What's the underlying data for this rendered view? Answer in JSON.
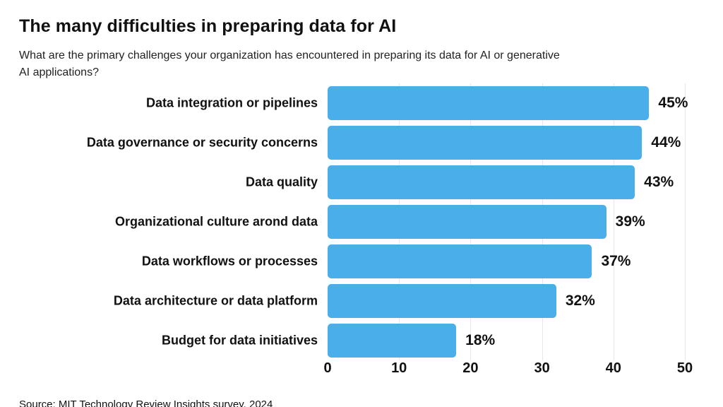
{
  "header": {
    "title": "The many difficulties in preparing data for AI",
    "subtitle_line1": "What are the primary challenges your organization has encountered in preparing its data for AI or generative",
    "subtitle_line2": "AI applications?"
  },
  "footer": {
    "source": "Source: MIT Technology Review Insights survey, 2024"
  },
  "colors": {
    "bar": "#49AEE9",
    "gridline": "#e8e8e8",
    "text": "#111111",
    "background": "#ffffff"
  },
  "chart_data": {
    "type": "bar",
    "orientation": "horizontal",
    "title": "The many difficulties in preparing data for AI",
    "xlabel": "",
    "ylabel": "",
    "categories": [
      "Data integration or pipelines",
      "Data governance or security concerns",
      "Data quality",
      "Organizational culture arond data",
      "Data workflows or processes",
      "Data architecture or data platform",
      "Budget for data initiatives"
    ],
    "values": [
      45,
      44,
      43,
      39,
      37,
      32,
      18
    ],
    "value_labels": [
      "45%",
      "44%",
      "43%",
      "39%",
      "37%",
      "32%",
      "18%"
    ],
    "xlim": [
      0,
      50
    ],
    "x_ticks": [
      0,
      10,
      20,
      30,
      40,
      50
    ],
    "x_tick_labels": [
      "0",
      "10",
      "20",
      "30",
      "40",
      "50"
    ],
    "grid": "vertical gridlines at ticks 10,20,30,40,50",
    "legend_position": "none"
  }
}
